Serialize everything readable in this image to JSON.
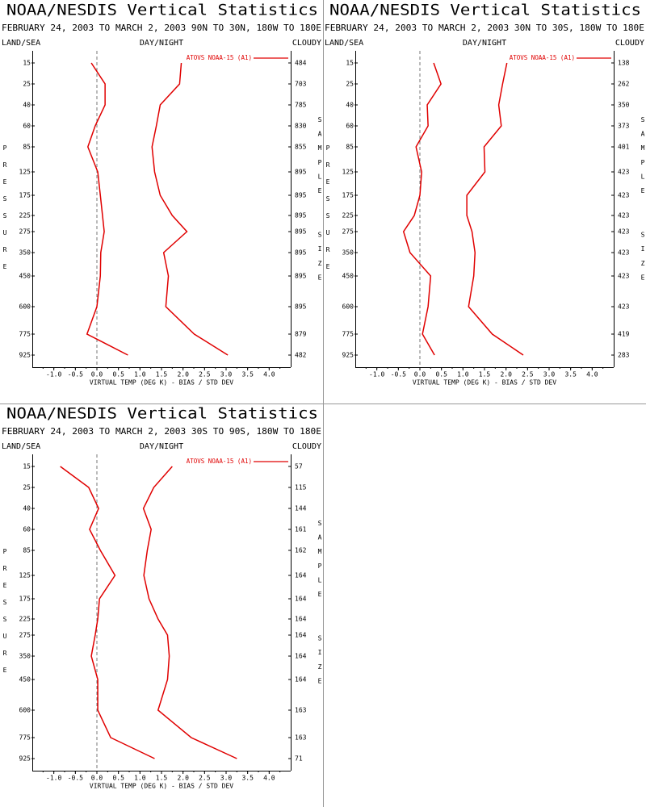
{
  "chart_data": [
    {
      "type": "line",
      "title": "NOAA/NESDIS Vertical Statistics",
      "subtitle": "FEBRUARY 24, 2003 TO MARCH 2, 2003 90N TO 30N, 180W TO 180E",
      "left_header": "LAND/SEA",
      "center_header": "DAY/NIGHT",
      "right_header": "CLOUDY",
      "y_label": "PRESSURE",
      "y2_label": "SAMPLE SIZE",
      "x_label": "VIRTUAL TEMP (DEG K) - BIAS / STD DEV",
      "categories": [
        "15",
        "25",
        "40",
        "60",
        "85",
        "125",
        "175",
        "225",
        "275",
        "350",
        "450",
        "600",
        "775",
        "925"
      ],
      "sample_size": [
        484,
        703,
        785,
        830,
        855,
        895,
        895,
        895,
        895,
        895,
        895,
        895,
        879,
        482
      ],
      "series": [
        {
          "name": "ATOVS NOAA-15 (A1)",
          "color": "#e00000",
          "bias": [
            -0.13,
            0.19,
            0.19,
            -0.04,
            -0.21,
            0.02,
            0.08,
            0.13,
            0.17,
            0.09,
            0.08,
            0,
            -0.23,
            0.72
          ],
          "std_dev": [
            1.96,
            1.92,
            1.47,
            1.38,
            1.28,
            1.34,
            1.47,
            1.75,
            2.09,
            1.55,
            1.66,
            1.6,
            2.26,
            3.04
          ]
        }
      ],
      "xlim": [
        -1.5,
        4.5
      ],
      "xticks": [
        {
          "value": -1,
          "label": "-1.0"
        },
        {
          "value": -0.5,
          "label": "-0.5"
        },
        {
          "value": 0,
          "label": "0.0"
        },
        {
          "value": 0.5,
          "label": "0.5"
        },
        {
          "value": 1,
          "label": "1.0"
        },
        {
          "value": 1.5,
          "label": "1.5"
        },
        {
          "value": 2,
          "label": "2.0"
        },
        {
          "value": 2.5,
          "label": "2.5"
        },
        {
          "value": 3,
          "label": "3.0"
        },
        {
          "value": 3.5,
          "label": "3.5"
        },
        {
          "value": 4,
          "label": "4.0"
        }
      ],
      "zero_line": true
    },
    {
      "type": "line",
      "title": "NOAA/NESDIS Vertical Statistics",
      "subtitle": "FEBRUARY 24, 2003 TO MARCH 2, 2003 30N TO 30S, 180W TO 180E",
      "left_header": "LAND/SEA",
      "center_header": "DAY/NIGHT",
      "right_header": "CLOUDY",
      "y_label": "PRESSURE",
      "y2_label": "SAMPLE SIZE",
      "x_label": "VIRTUAL TEMP (DEG K) - BIAS / STD DEV",
      "categories": [
        "15",
        "25",
        "40",
        "60",
        "85",
        "125",
        "175",
        "225",
        "275",
        "350",
        "450",
        "600",
        "775",
        "925"
      ],
      "sample_size": [
        138,
        262,
        350,
        373,
        401,
        423,
        423,
        423,
        423,
        423,
        423,
        423,
        419,
        283
      ],
      "series": [
        {
          "name": "ATOVS NOAA-15 (A1)",
          "color": "#e00000",
          "bias": [
            0.32,
            0.49,
            0.17,
            0.19,
            -0.09,
            0.04,
            0,
            -0.13,
            -0.38,
            -0.23,
            0.25,
            0.19,
            0.06,
            0.34
          ],
          "std_dev": [
            2.02,
            1.92,
            1.83,
            1.89,
            1.49,
            1.51,
            1.09,
            1.09,
            1.21,
            1.28,
            1.25,
            1.13,
            1.68,
            2.4
          ]
        }
      ],
      "xlim": [
        -1.5,
        4.5
      ],
      "xticks": [
        {
          "value": -1,
          "label": "-1.0"
        },
        {
          "value": -0.5,
          "label": "-0.5"
        },
        {
          "value": 0,
          "label": "0.0"
        },
        {
          "value": 0.5,
          "label": "0.5"
        },
        {
          "value": 1,
          "label": "1.0"
        },
        {
          "value": 1.5,
          "label": "1.5"
        },
        {
          "value": 2,
          "label": "2.0"
        },
        {
          "value": 2.5,
          "label": "2.5"
        },
        {
          "value": 3,
          "label": "3.0"
        },
        {
          "value": 3.5,
          "label": "3.5"
        },
        {
          "value": 4,
          "label": "4.0"
        }
      ],
      "zero_line": true
    },
    {
      "type": "line",
      "title": "NOAA/NESDIS Vertical Statistics",
      "subtitle": "FEBRUARY 24, 2003 TO MARCH 2, 2003 30S TO 90S, 180W TO 180E",
      "left_header": "LAND/SEA",
      "center_header": "DAY/NIGHT",
      "right_header": "CLOUDY",
      "y_label": "PRESSURE",
      "y2_label": "SAMPLE SIZE",
      "x_label": "VIRTUAL TEMP (DEG K) - BIAS / STD DEV",
      "categories": [
        "15",
        "25",
        "40",
        "60",
        "85",
        "125",
        "175",
        "225",
        "275",
        "350",
        "450",
        "600",
        "775",
        "925"
      ],
      "sample_size": [
        57,
        115,
        144,
        161,
        162,
        164,
        164,
        164,
        164,
        164,
        164,
        163,
        163,
        71
      ],
      "series": [
        {
          "name": "ATOVS NOAA-15 (A1)",
          "color": "#e00000",
          "bias": [
            -0.85,
            -0.19,
            0.04,
            -0.17,
            0.08,
            0.42,
            0.06,
            0.02,
            -0.04,
            -0.13,
            0.02,
            0.02,
            0.32,
            1.34
          ],
          "std_dev": [
            1.75,
            1.32,
            1.08,
            1.26,
            1.17,
            1.09,
            1.21,
            1.42,
            1.64,
            1.68,
            1.64,
            1.42,
            2.19,
            3.25
          ]
        }
      ],
      "xlim": [
        -1.5,
        4.5
      ],
      "xticks": [
        {
          "value": -1,
          "label": "-1.0"
        },
        {
          "value": -0.5,
          "label": "-0.5"
        },
        {
          "value": 0,
          "label": "0.0"
        },
        {
          "value": 0.5,
          "label": "0.5"
        },
        {
          "value": 1,
          "label": "1.0"
        },
        {
          "value": 1.5,
          "label": "1.5"
        },
        {
          "value": 2,
          "label": "2.0"
        },
        {
          "value": 2.5,
          "label": "2.5"
        },
        {
          "value": 3,
          "label": "3.0"
        },
        {
          "value": 3.5,
          "label": "3.5"
        },
        {
          "value": 4,
          "label": "4.0"
        }
      ],
      "zero_line": true
    }
  ]
}
